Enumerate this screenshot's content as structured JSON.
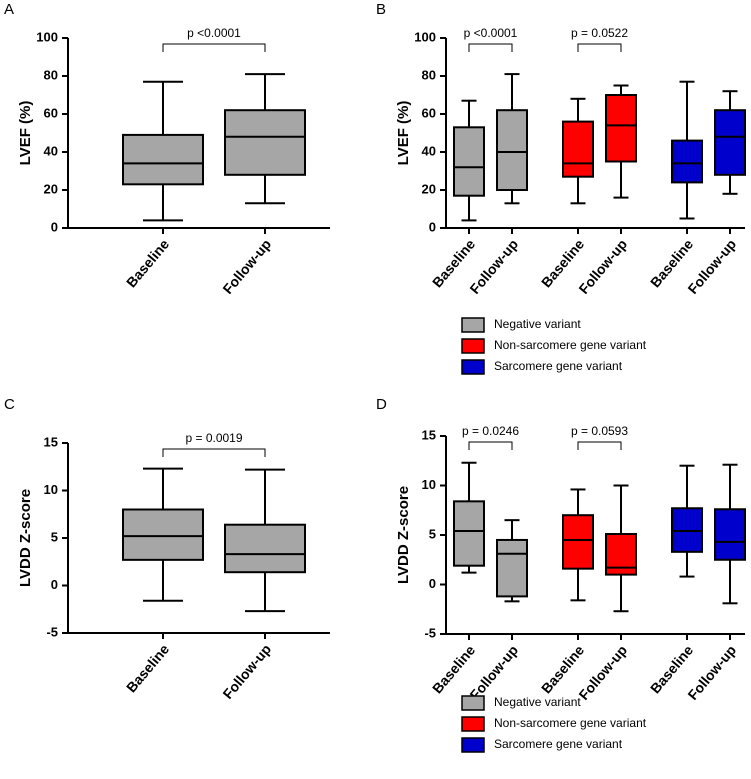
{
  "chart_data": [
    {
      "type": "box",
      "panel_label": "A",
      "ylabel": "LVEF (%)",
      "ylim": [
        0,
        100
      ],
      "yticks": [
        0,
        20,
        40,
        60,
        80,
        100
      ],
      "series": [
        {
          "color": "#a6a6a6",
          "categories": [
            "Baseline",
            "Follow-up"
          ],
          "values": [
            {
              "min": 4,
              "q1": 23,
              "median": 34,
              "q3": 49,
              "max": 77
            },
            {
              "min": 13,
              "q1": 28,
              "median": 48,
              "q3": 62,
              "max": 81
            }
          ]
        }
      ],
      "annotations": [
        {
          "text": "p <0.0001",
          "series": 0,
          "from": 0,
          "to": 1
        }
      ]
    },
    {
      "type": "box",
      "panel_label": "B",
      "ylabel": "LVEF (%)",
      "ylim": [
        0,
        100
      ],
      "yticks": [
        0,
        20,
        40,
        60,
        80,
        100
      ],
      "legend": "below",
      "series": [
        {
          "name": "Negative variant",
          "color": "#a6a6a6",
          "categories": [
            "Baseline",
            "Follow-up"
          ],
          "values": [
            {
              "min": 4,
              "q1": 17,
              "median": 32,
              "q3": 53,
              "max": 67
            },
            {
              "min": 13,
              "q1": 20,
              "median": 40,
              "q3": 62,
              "max": 81
            }
          ]
        },
        {
          "name": "Non-sarcomere gene variant",
          "color": "#ff0000",
          "categories": [
            "Baseline",
            "Follow-up"
          ],
          "values": [
            {
              "min": 13,
              "q1": 27,
              "median": 34,
              "q3": 56,
              "max": 68
            },
            {
              "min": 16,
              "q1": 35,
              "median": 54,
              "q3": 70,
              "max": 75
            }
          ]
        },
        {
          "name": "Sarcomere gene variant",
          "color": "#0000cc",
          "categories": [
            "Baseline",
            "Follow-up"
          ],
          "values": [
            {
              "min": 5,
              "q1": 24,
              "median": 34,
              "q3": 46,
              "max": 77
            },
            {
              "min": 18,
              "q1": 28,
              "median": 48,
              "q3": 62,
              "max": 72
            }
          ]
        }
      ],
      "annotations": [
        {
          "text": "p <0.0001",
          "series": 0,
          "from": 0,
          "to": 1
        },
        {
          "text": "p = 0.0522",
          "series": 1,
          "from": 0,
          "to": 1
        }
      ]
    },
    {
      "type": "box",
      "panel_label": "C",
      "ylabel": "LVDD Z-score",
      "ylim": [
        -5,
        15
      ],
      "yticks": [
        -5,
        0,
        5,
        10,
        15
      ],
      "series": [
        {
          "color": "#a6a6a6",
          "categories": [
            "Baseline",
            "Follow-up"
          ],
          "values": [
            {
              "min": -1.6,
              "q1": 2.7,
              "median": 5.2,
              "q3": 8.0,
              "max": 12.3
            },
            {
              "min": -2.7,
              "q1": 1.4,
              "median": 3.3,
              "q3": 6.4,
              "max": 12.2
            }
          ]
        }
      ],
      "annotations": [
        {
          "text": "p = 0.0019",
          "series": 0,
          "from": 0,
          "to": 1
        }
      ]
    },
    {
      "type": "box",
      "panel_label": "D",
      "ylabel": "LVDD Z-score",
      "ylim": [
        -5,
        15
      ],
      "yticks": [
        -5,
        0,
        5,
        10,
        15
      ],
      "legend": "below",
      "series": [
        {
          "name": "Negative variant",
          "color": "#a6a6a6",
          "categories": [
            "Baseline",
            "Follow-up"
          ],
          "values": [
            {
              "min": 1.2,
              "q1": 1.9,
              "median": 5.4,
              "q3": 8.4,
              "max": 12.3
            },
            {
              "min": -1.7,
              "q1": -1.2,
              "median": 3.1,
              "q3": 4.5,
              "max": 6.5
            }
          ]
        },
        {
          "name": "Non-sarcomere gene variant",
          "color": "#ff0000",
          "categories": [
            "Baseline",
            "Follow-up"
          ],
          "values": [
            {
              "min": -1.6,
              "q1": 1.6,
              "median": 4.5,
              "q3": 7.0,
              "max": 9.6
            },
            {
              "min": -2.7,
              "q1": 1.0,
              "median": 1.7,
              "q3": 5.1,
              "max": 10.0
            }
          ]
        },
        {
          "name": "Sarcomere gene variant",
          "color": "#0000cc",
          "categories": [
            "Baseline",
            "Follow-up"
          ],
          "values": [
            {
              "min": 0.8,
              "q1": 3.3,
              "median": 5.4,
              "q3": 7.7,
              "max": 12.0
            },
            {
              "min": -1.9,
              "q1": 2.5,
              "median": 4.3,
              "q3": 7.6,
              "max": 12.1
            }
          ]
        }
      ],
      "annotations": [
        {
          "text": "p = 0.0246",
          "series": 0,
          "from": 0,
          "to": 1
        },
        {
          "text": "p = 0.0593",
          "series": 1,
          "from": 0,
          "to": 1
        }
      ]
    }
  ]
}
